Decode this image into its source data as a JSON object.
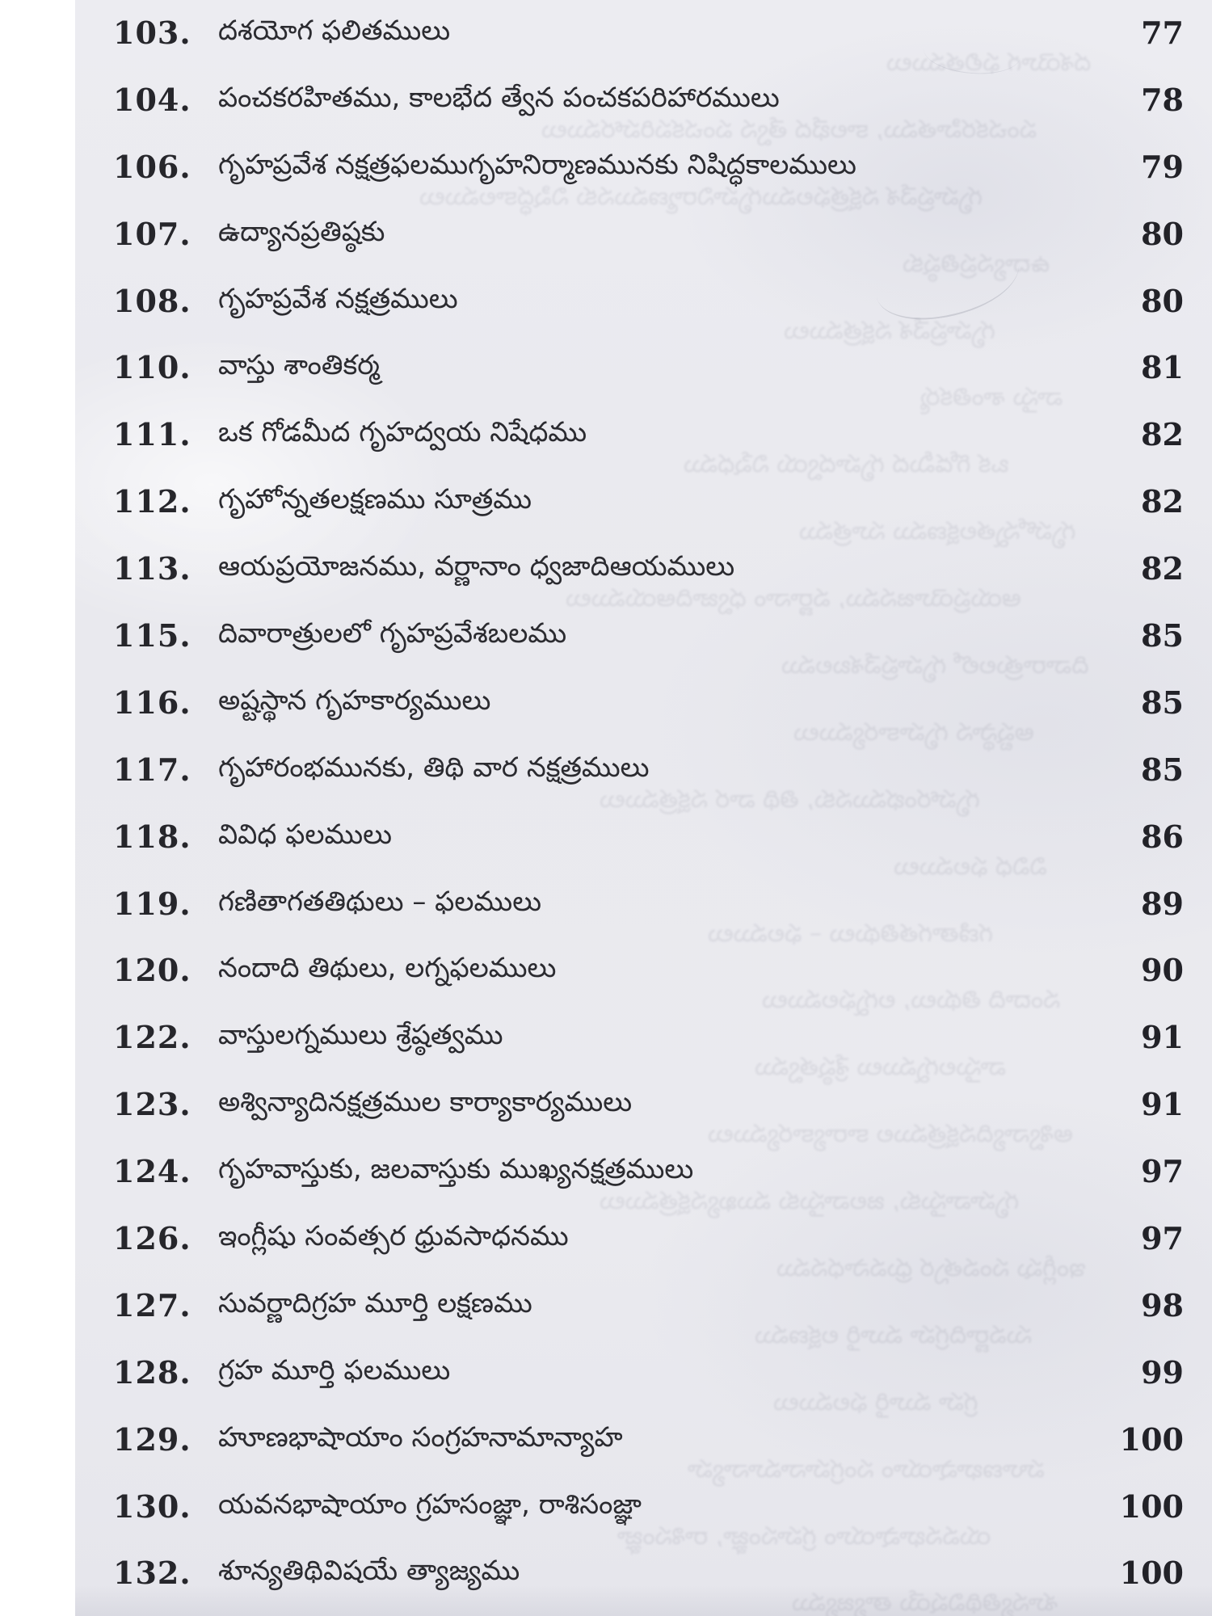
{
  "document": {
    "kind": "scanned-book-table-of-contents",
    "language": "Telugu",
    "colors": {
      "paper": "#e9e9ee",
      "scanner_margin": "#ffffff",
      "ink": "#26262b"
    },
    "toc": {
      "entries": [
        {
          "num": "103.",
          "title": "దశయోగ ఫలితములు",
          "page": "77"
        },
        {
          "num": "104.",
          "title": "పంచకరహితము, కాలభేద త్వేన పంచకపరిహారములు",
          "page": "78"
        },
        {
          "num": "106.",
          "title": "గృహప్రవేశ నక్షత్రఫలముగృహనిర్మాణమునకు నిషిద్ధకాలములు",
          "page": "79"
        },
        {
          "num": "107.",
          "title": "ఉద్యానప్రతిష్ఠకు",
          "page": "80"
        },
        {
          "num": "108.",
          "title": "గృహప్రవేశ నక్షత్రములు",
          "page": "80"
        },
        {
          "num": "110.",
          "title": "వాస్తు శాంతికర్మ",
          "page": "81"
        },
        {
          "num": "111.",
          "title": "ఒక గోడమీద గృహద్వయ నిషేధము",
          "page": "82"
        },
        {
          "num": "112.",
          "title": "గృహోన్నతలక్షణము సూత్రము",
          "page": "82"
        },
        {
          "num": "113.",
          "title": "ఆయప్రయోజనము, వర్ణానాం ధ్వజాదిఆయములు",
          "page": "82"
        },
        {
          "num": "115.",
          "title": "దివారాత్రులలో గృహప్రవేశబలము",
          "page": "85"
        },
        {
          "num": "116.",
          "title": "అష్టస్థాన గృహకార్యములు",
          "page": "85"
        },
        {
          "num": "117.",
          "title": "గృహారంభమునకు, తిథి వార నక్షత్రములు",
          "page": "85"
        },
        {
          "num": "118.",
          "title": "వివిధ ఫలములు",
          "page": "86"
        },
        {
          "num": "119.",
          "title": "గణితాగతతిథులు – ఫలములు",
          "page": "89"
        },
        {
          "num": "120.",
          "title": "నందాది తిథులు, లగ్నఫలములు",
          "page": "90"
        },
        {
          "num": "122.",
          "title": "వాస్తులగ్నములు శ్రేష్ఠత్వము",
          "page": "91"
        },
        {
          "num": "123.",
          "title": "అశ్విన్యాదినక్షత్రముల కార్యాకార్యములు",
          "page": "91"
        },
        {
          "num": "124.",
          "title": "గృహవాస్తుకు, జలవాస్తుకు ముఖ్యనక్షత్రములు",
          "page": "97"
        },
        {
          "num": "126.",
          "title": "ఇంగ్లీషు సంవత్సర ధ్రువసాధనము",
          "page": "97"
        },
        {
          "num": "127.",
          "title": "సువర్ణాదిగ్రహ మూర్తి లక్షణము",
          "page": "98"
        },
        {
          "num": "128.",
          "title": "గ్రహ మూర్తి ఫలములు",
          "page": "99"
        },
        {
          "num": "129.",
          "title": "హూణభాషాయాం సంగ్రహనామాన్యాహ",
          "page": "100"
        },
        {
          "num": "130.",
          "title": "యవనభాషాయాం గ్రహసంజ్ఞా, రాశిసంజ్ఞా",
          "page": "100"
        },
        {
          "num": "132.",
          "title": "శూన్యతిథివిషయే త్యాజ్యము",
          "page": "100"
        }
      ]
    }
  }
}
